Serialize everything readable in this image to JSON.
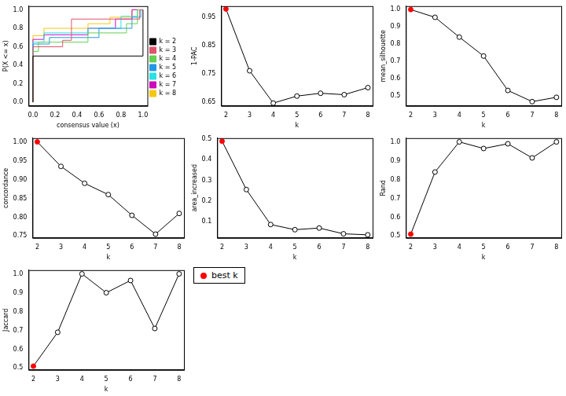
{
  "chart_data": [
    {
      "type": "line",
      "line_style": "step",
      "x_label": "consensus value (x)",
      "y_label": "P(X <= x)",
      "xlim": [
        -0.04,
        1.04
      ],
      "ylim": [
        -0.04,
        1.04
      ],
      "xticks": [
        {
          "value": 0,
          "label": "0.0"
        },
        0.2,
        0.4,
        0.6,
        0.8,
        {
          "value": 1,
          "label": "1.0"
        }
      ],
      "yticks": [
        {
          "value": 0,
          "label": "0.0"
        },
        0.2,
        0.4,
        0.6,
        0.8,
        {
          "value": 1,
          "label": "1.0"
        }
      ],
      "legend": "right",
      "series": [
        {
          "name": "k = 2",
          "color": "#000000",
          "x": [
            0,
            0,
            1,
            1
          ],
          "values": [
            0,
            0.5,
            0.5,
            1
          ]
        },
        {
          "name": "k = 3",
          "color": "#DF536B",
          "x": [
            0,
            0,
            0.27,
            0.35,
            0.97,
            1
          ],
          "values": [
            0,
            0.5,
            0.6,
            0.67,
            0.9,
            1
          ]
        },
        {
          "name": "k = 4",
          "color": "#61D04F",
          "x": [
            0,
            0,
            0.05,
            0.5,
            0.85,
            0.95,
            1
          ],
          "values": [
            0,
            0.5,
            0.55,
            0.65,
            0.75,
            0.85,
            1
          ]
        },
        {
          "name": "k = 5",
          "color": "#2297E6",
          "x": [
            0,
            0,
            0.15,
            0.6,
            0.9,
            0.98,
            1
          ],
          "values": [
            0,
            0.57,
            0.63,
            0.7,
            0.8,
            0.92,
            1
          ]
        },
        {
          "name": "k = 6",
          "color": "#28E2E5",
          "x": [
            0,
            0,
            0.1,
            0.5,
            0.8,
            0.95,
            1
          ],
          "values": [
            0,
            0.55,
            0.65,
            0.75,
            0.8,
            0.93,
            1
          ]
        },
        {
          "name": "k = 7",
          "color": "#CD0BBC",
          "x": [
            0,
            0,
            0.1,
            0.5,
            0.75,
            0.9,
            1
          ],
          "values": [
            0,
            0.6,
            0.68,
            0.73,
            0.8,
            0.9,
            1
          ]
        },
        {
          "name": "k = 8",
          "color": "#F5C710",
          "x": [
            0,
            0,
            0.1,
            0.5,
            0.7,
            0.9,
            1
          ],
          "values": [
            0,
            0.6,
            0.72,
            0.8,
            0.85,
            0.92,
            1
          ]
        }
      ]
    },
    {
      "type": "line",
      "marker": "circle",
      "x_label": "k",
      "y_label": "1-PAC",
      "color": "#000000",
      "x": [
        2,
        3,
        4,
        5,
        6,
        7,
        8
      ],
      "values": [
        0.98,
        0.76,
        0.645,
        0.67,
        0.68,
        0.675,
        0.7
      ],
      "colors": [
        "#FF0000",
        "#FFFFFF",
        "#FFFFFF",
        "#FFFFFF",
        "#FFFFFF",
        "#FFFFFF",
        "#FFFFFF"
      ],
      "xlim": [
        1.8,
        8.2
      ],
      "ylim": [
        0.635,
        0.99
      ],
      "xticks": [
        2,
        3,
        4,
        5,
        6,
        7,
        8
      ],
      "yticks": [
        0.65,
        0.75,
        0.85,
        0.95
      ]
    },
    {
      "type": "line",
      "marker": "circle",
      "x_label": "k",
      "y_label": "mean_silhouette",
      "color": "#000000",
      "x": [
        2,
        3,
        4,
        5,
        6,
        7,
        8
      ],
      "values": [
        1.0,
        0.955,
        0.84,
        0.73,
        0.53,
        0.465,
        0.49
      ],
      "colors": [
        "#FF0000",
        "#FFFFFF",
        "#FFFFFF",
        "#FFFFFF",
        "#FFFFFF",
        "#FFFFFF",
        "#FFFFFF"
      ],
      "xlim": [
        1.8,
        8.2
      ],
      "ylim": [
        0.44,
        1.02
      ],
      "xticks": [
        2,
        3,
        4,
        5,
        6,
        7,
        8
      ],
      "yticks": [
        0.5,
        0.6,
        0.7,
        0.8,
        0.9,
        {
          "value": 1,
          "label": "1.0"
        }
      ]
    },
    {
      "type": "line",
      "marker": "circle",
      "x_label": "k",
      "y_label": "concordance",
      "color": "#000000",
      "x": [
        2,
        3,
        4,
        5,
        6,
        7,
        8
      ],
      "values": [
        1.0,
        0.935,
        0.89,
        0.86,
        0.805,
        0.755,
        0.81
      ],
      "colors": [
        "#FF0000",
        "#FFFFFF",
        "#FFFFFF",
        "#FFFFFF",
        "#FFFFFF",
        "#FFFFFF",
        "#FFFFFF"
      ],
      "xlim": [
        1.8,
        8.2
      ],
      "ylim": [
        0.745,
        1.01
      ],
      "xticks": [
        2,
        3,
        4,
        5,
        6,
        7,
        8
      ],
      "yticks": [
        0.75,
        {
          "value": 0.8,
          "label": "0.80"
        },
        0.85,
        {
          "value": 0.9,
          "label": "0.90"
        },
        0.95,
        {
          "value": 1,
          "label": "1.00"
        }
      ]
    },
    {
      "type": "line",
      "marker": "circle",
      "x_label": "k",
      "y_label": "area_increased",
      "color": "#000000",
      "x": [
        2,
        3,
        4,
        5,
        6,
        7,
        8
      ],
      "values": [
        0.49,
        0.255,
        0.085,
        0.06,
        0.068,
        0.04,
        0.035
      ],
      "colors": [
        "#FF0000",
        "#FFFFFF",
        "#FFFFFF",
        "#FFFFFF",
        "#FFFFFF",
        "#FFFFFF",
        "#FFFFFF"
      ],
      "xlim": [
        1.8,
        8.2
      ],
      "ylim": [
        0.02,
        0.505
      ],
      "xticks": [
        2,
        3,
        4,
        5,
        6,
        7,
        8
      ],
      "yticks": [
        0.1,
        0.2,
        0.3,
        0.4,
        0.5
      ]
    },
    {
      "type": "line",
      "marker": "circle",
      "x_label": "k",
      "y_label": "Rand",
      "color": "#000000",
      "x": [
        2,
        3,
        4,
        5,
        6,
        7,
        8
      ],
      "values": [
        0.51,
        0.84,
        1.0,
        0.965,
        0.99,
        0.915,
        1.0
      ],
      "colors": [
        "#FF0000",
        "#FFFFFF",
        "#FFFFFF",
        "#FFFFFF",
        "#FFFFFF",
        "#FFFFFF",
        "#FFFFFF"
      ],
      "xlim": [
        1.8,
        8.2
      ],
      "ylim": [
        0.49,
        1.02
      ],
      "xticks": [
        2,
        3,
        4,
        5,
        6,
        7,
        8
      ],
      "yticks": [
        0.5,
        0.6,
        0.7,
        0.8,
        0.9,
        {
          "value": 1,
          "label": "1.0"
        }
      ]
    },
    {
      "type": "line",
      "marker": "circle",
      "x_label": "k",
      "y_label": "Jaccard",
      "color": "#000000",
      "x": [
        2,
        3,
        4,
        5,
        6,
        7,
        8
      ],
      "values": [
        0.51,
        0.69,
        1.0,
        0.9,
        0.965,
        0.71,
        1.0
      ],
      "colors": [
        "#FF0000",
        "#FFFFFF",
        "#FFFFFF",
        "#FFFFFF",
        "#FFFFFF",
        "#FFFFFF",
        "#FFFFFF"
      ],
      "xlim": [
        1.8,
        8.2
      ],
      "ylim": [
        0.49,
        1.02
      ],
      "xticks": [
        2,
        3,
        4,
        5,
        6,
        7,
        8
      ],
      "yticks": [
        0.5,
        0.6,
        0.7,
        0.8,
        0.9,
        {
          "value": 1,
          "label": "1.0"
        }
      ]
    }
  ],
  "legend_box": {
    "text": "best k",
    "color": "#FF0000"
  }
}
